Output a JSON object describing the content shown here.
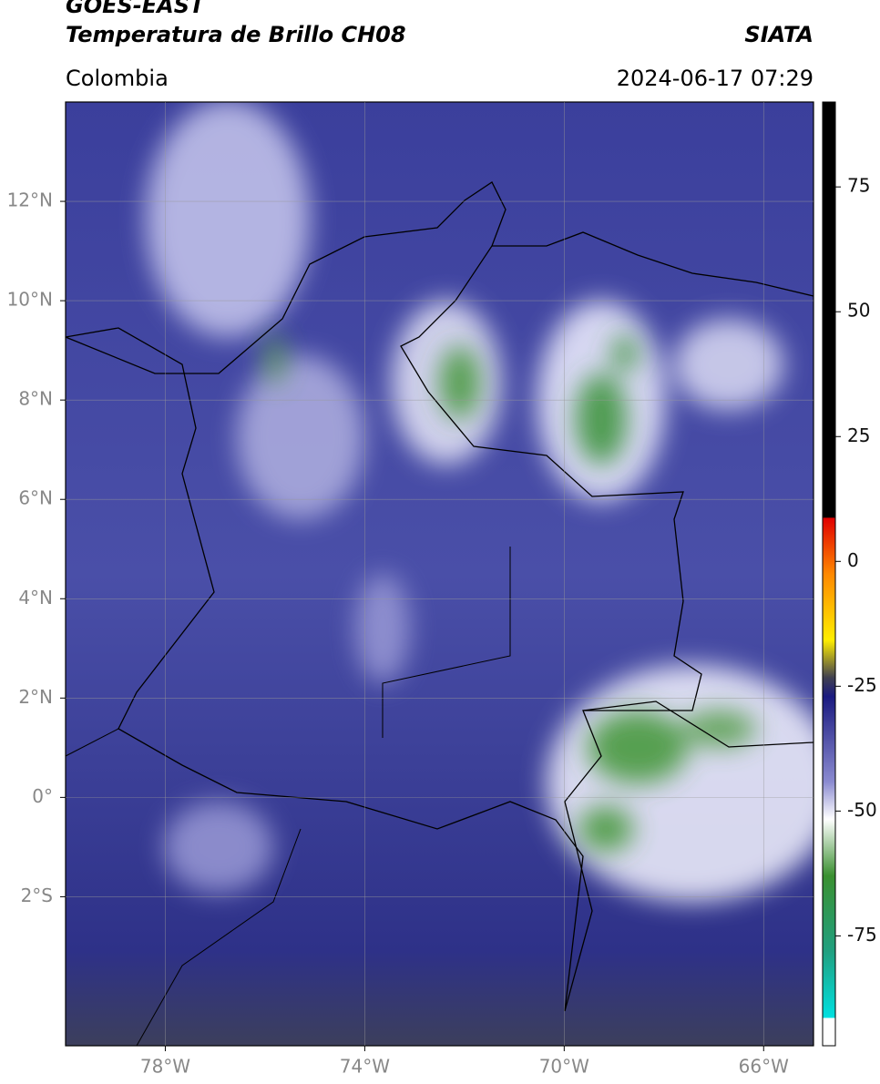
{
  "header": {
    "satellite": "GOES-EAST",
    "product": "Temperatura de Brillo CH08",
    "source": "SIATA",
    "region": "Colombia",
    "datetime": "2024-06-17 07:29"
  },
  "map": {
    "xlim": [
      -80,
      -65
    ],
    "ylim": [
      -5,
      14
    ],
    "xticks": [
      {
        "value": -78,
        "label": "78°W"
      },
      {
        "value": -74,
        "label": "74°W"
      },
      {
        "value": -70,
        "label": "70°W"
      },
      {
        "value": -66,
        "label": "66°W"
      }
    ],
    "yticks": [
      {
        "value": 12,
        "label": "12°N"
      },
      {
        "value": 10,
        "label": "10°N"
      },
      {
        "value": 8,
        "label": "8°N"
      },
      {
        "value": 6,
        "label": "6°N"
      },
      {
        "value": 4,
        "label": "4°N"
      },
      {
        "value": 2,
        "label": "2°N"
      },
      {
        "value": 0,
        "label": "0°"
      },
      {
        "value": -2,
        "label": "2°S"
      }
    ],
    "grid": true
  },
  "colorbar": {
    "clim": [
      -97,
      92
    ],
    "ticks": [
      75,
      50,
      25,
      0,
      -25,
      -50,
      -75
    ]
  }
}
